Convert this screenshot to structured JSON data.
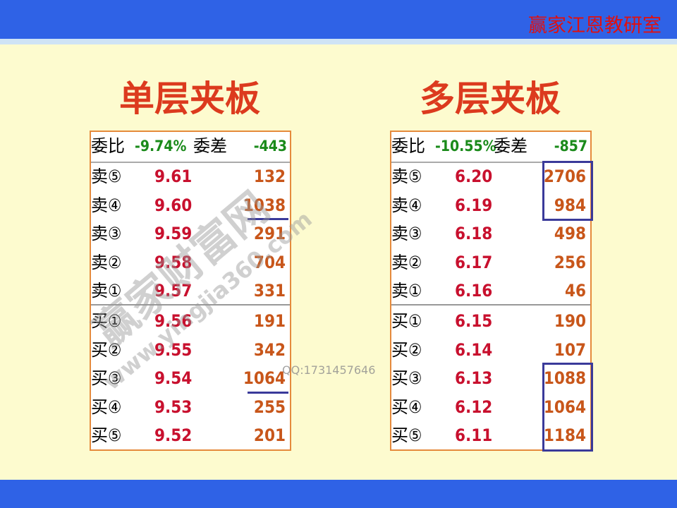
{
  "header": {
    "brand": "赢家江恩教研室"
  },
  "panels": [
    {
      "title": "单层夹板",
      "summary": {
        "ratio_label": "委比",
        "ratio": "-9.74%",
        "diff_label": "委差",
        "diff": "-443"
      },
      "sell": [
        {
          "label": "卖⑤",
          "price": "9.61",
          "volume": "132"
        },
        {
          "label": "卖④",
          "price": "9.60",
          "volume": "1038"
        },
        {
          "label": "卖③",
          "price": "9.59",
          "volume": "291"
        },
        {
          "label": "卖②",
          "price": "9.58",
          "volume": "704"
        },
        {
          "label": "卖①",
          "price": "9.57",
          "volume": "331"
        }
      ],
      "buy": [
        {
          "label": "买①",
          "price": "9.56",
          "volume": "191"
        },
        {
          "label": "买②",
          "price": "9.55",
          "volume": "342"
        },
        {
          "label": "买③",
          "price": "9.54",
          "volume": "1064"
        },
        {
          "label": "买④",
          "price": "9.53",
          "volume": "255"
        },
        {
          "label": "买⑤",
          "price": "9.52",
          "volume": "201"
        }
      ]
    },
    {
      "title": "多层夹板",
      "summary": {
        "ratio_label": "委比",
        "ratio": "-10.55%",
        "diff_label": "委差",
        "diff": "-857"
      },
      "sell": [
        {
          "label": "卖⑤",
          "price": "6.20",
          "volume": "2706"
        },
        {
          "label": "卖④",
          "price": "6.19",
          "volume": "984"
        },
        {
          "label": "卖③",
          "price": "6.18",
          "volume": "498"
        },
        {
          "label": "卖②",
          "price": "6.17",
          "volume": "256"
        },
        {
          "label": "卖①",
          "price": "6.16",
          "volume": "46"
        }
      ],
      "buy": [
        {
          "label": "买①",
          "price": "6.15",
          "volume": "190"
        },
        {
          "label": "买②",
          "price": "6.14",
          "volume": "107"
        },
        {
          "label": "买③",
          "price": "6.13",
          "volume": "1088"
        },
        {
          "label": "买④",
          "price": "6.12",
          "volume": "1064"
        },
        {
          "label": "买⑤",
          "price": "6.11",
          "volume": "1184"
        }
      ]
    }
  ],
  "watermark": {
    "site": "赢家财富网",
    "url": "www.yingjia360.com",
    "qq": "QQ:1731457646"
  }
}
